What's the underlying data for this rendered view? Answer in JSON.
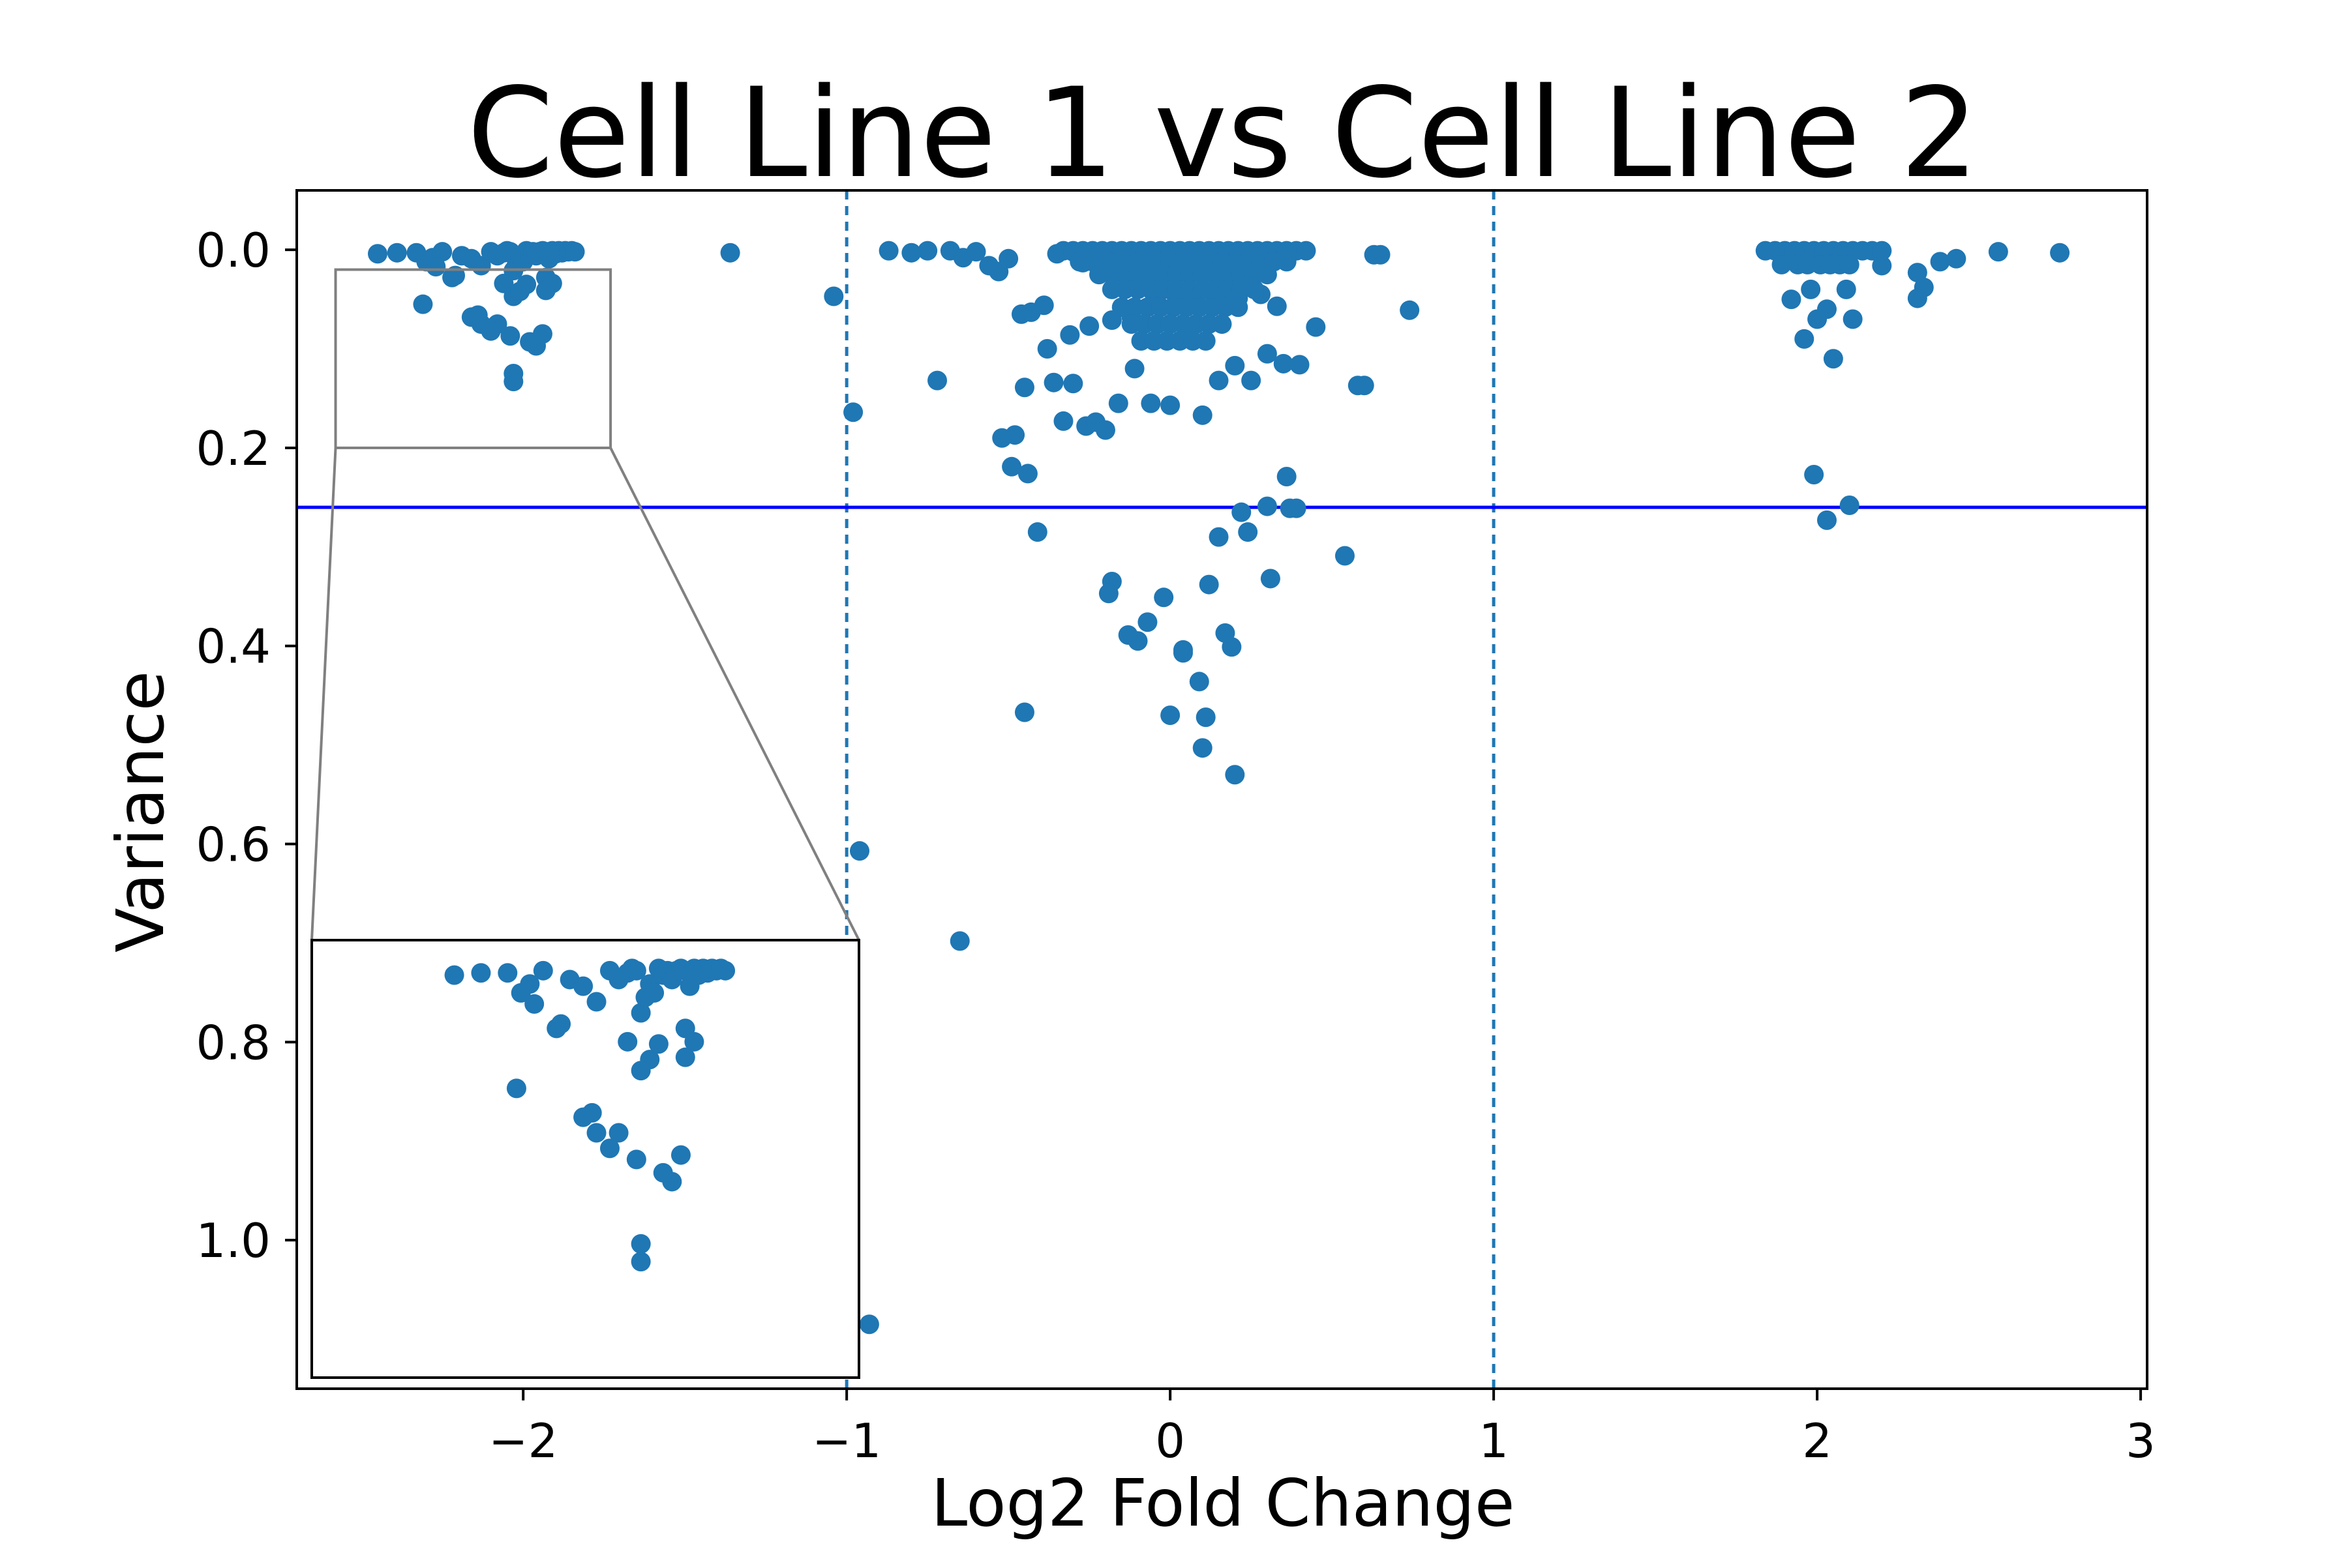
{
  "chart_data": {
    "type": "scatter",
    "title": "Cell Line 1 vs Cell Line 2",
    "xlabel": "Log2 Fold Change",
    "ylabel": "Variance",
    "xlim": [
      -2.7,
      3.02
    ],
    "ylim": [
      1.15,
      -0.06
    ],
    "y_axis_inverted": true,
    "x_ticks": [
      "−2",
      "−1",
      "0",
      "1",
      "2",
      "3"
    ],
    "x_tick_values": [
      -2,
      -1,
      0,
      1,
      2,
      3
    ],
    "y_ticks": [
      "0.0",
      "0.2",
      "0.4",
      "0.6",
      "0.8",
      "1.0"
    ],
    "y_tick_values": [
      0.0,
      0.2,
      0.4,
      0.6,
      0.8,
      1.0
    ],
    "grid": false,
    "marker_color": "#1f77b4",
    "reference_lines": [
      {
        "orientation": "vertical",
        "x": -1,
        "style": "dashed",
        "color": "#1f77b4"
      },
      {
        "orientation": "vertical",
        "x": 1,
        "style": "dashed",
        "color": "#1f77b4"
      },
      {
        "orientation": "horizontal",
        "y": 0.26,
        "style": "solid",
        "color": "#0000ff"
      }
    ],
    "inset": {
      "zoom_region": {
        "x": [
          -2.58,
          -1.73
        ],
        "y": [
          0.02,
          0.2
        ]
      },
      "border_color": "#000000",
      "connector_color": "#808080",
      "placement": "lower-left"
    },
    "series": [
      {
        "x": [
          -2.45,
          -2.39,
          -2.33,
          -2.3,
          -2.28,
          -2.25,
          -2.22,
          -2.19,
          -2.16,
          -2.13,
          -2.1,
          -2.08,
          -2.06,
          -2.05,
          -2.04,
          -2.03,
          -2.02,
          -2.01,
          -2.0,
          -1.99,
          -1.98,
          -1.97,
          -1.96,
          -1.95,
          -1.94,
          -1.93,
          -1.92,
          -1.91,
          -1.9,
          -1.89,
          -1.88,
          -1.87,
          -1.86,
          -1.85,
          -1.84,
          -2.31,
          -2.27,
          -2.21,
          -2.16,
          -2.13,
          -2.08,
          -2.06,
          -2.03,
          -2.01,
          -1.99,
          -1.96,
          -1.93,
          -1.91,
          -2.14,
          -2.1,
          -2.04,
          -1.98,
          -2.03,
          -2.03,
          -1.94,
          -1.93
        ],
        "y": [
          0.004,
          0.003,
          0.003,
          0.012,
          0.008,
          0.002,
          0.028,
          0.006,
          0.009,
          0.016,
          0.002,
          0.006,
          0.003,
          0.001,
          0.002,
          0.021,
          0.014,
          0.008,
          0.012,
          0.001,
          0.004,
          0.002,
          0.006,
          0.002,
          0.001,
          0.002,
          0.009,
          0.001,
          0.004,
          0.001,
          0.003,
          0.001,
          0.002,
          0.001,
          0.002,
          0.055,
          0.017,
          0.026,
          0.068,
          0.075,
          0.075,
          0.034,
          0.047,
          0.042,
          0.035,
          0.097,
          0.028,
          0.034,
          0.066,
          0.082,
          0.087,
          0.093,
          0.125,
          0.133,
          0.085,
          0.041
        ]
      },
      {
        "x": [
          -1.36,
          -1.04,
          -0.98,
          -0.96,
          -0.93,
          -0.87,
          -0.8,
          -0.75,
          -0.68,
          -0.64,
          -0.6,
          -0.56,
          -0.53,
          -0.5,
          -0.46,
          -0.43,
          -0.39,
          -0.35,
          -0.3,
          -0.27,
          -0.23,
          -0.72,
          -0.48,
          -0.44,
          -0.41,
          -0.3,
          -0.52,
          -0.49,
          -0.45,
          -0.36,
          -0.33,
          -0.26,
          -0.23,
          -0.2,
          -0.16,
          -0.11,
          -0.06,
          0.0,
          0.05,
          0.1,
          0.15,
          0.2,
          0.25,
          0.3,
          0.35,
          0.4,
          0.45,
          0.54,
          0.58,
          0.63,
          0.65,
          0.74,
          -0.38,
          -0.31,
          -0.25,
          -0.18,
          -0.12,
          -0.05,
          0.02,
          0.08,
          0.14,
          0.21,
          0.28,
          0.33,
          0.6,
          -0.18,
          -0.1,
          0.12,
          0.19,
          -0.19,
          -0.13,
          -0.07,
          -0.02,
          0.04,
          0.09,
          0.17,
          0.24,
          0.37,
          0.15,
          0.22,
          0.31,
          0.36,
          0.39,
          0.0,
          0.1,
          0.2,
          0.3,
          -0.45,
          0.11,
          0.04,
          -0.65
        ],
        "y": [
          0.003,
          0.047,
          0.164,
          0.607,
          1.085,
          0.001,
          0.003,
          0.001,
          0.001,
          0.008,
          0.002,
          0.016,
          0.022,
          0.009,
          0.065,
          0.063,
          0.056,
          0.004,
          0.002,
          0.013,
          0.006,
          0.132,
          0.187,
          0.226,
          0.285,
          0.135,
          0.19,
          0.219,
          0.139,
          0.134,
          0.173,
          0.178,
          0.174,
          0.182,
          0.155,
          0.12,
          0.155,
          0.157,
          0.08,
          0.167,
          0.132,
          0.117,
          0.132,
          0.105,
          0.115,
          0.116,
          0.078,
          0.309,
          0.137,
          0.005,
          0.005,
          0.061,
          0.1,
          0.086,
          0.077,
          0.071,
          0.068,
          0.053,
          0.05,
          0.05,
          0.05,
          0.049,
          0.045,
          0.057,
          0.137,
          0.335,
          0.395,
          0.338,
          0.401,
          0.347,
          0.389,
          0.376,
          0.351,
          0.407,
          0.436,
          0.387,
          0.285,
          0.261,
          0.29,
          0.265,
          0.332,
          0.229,
          0.261,
          0.47,
          0.503,
          0.53,
          0.259,
          0.467,
          0.472,
          0.404,
          0.698
        ]
      },
      {
        "x": [
          -0.33,
          -0.3,
          -0.27,
          -0.24,
          -0.21,
          -0.18,
          -0.15,
          -0.12,
          -0.09,
          -0.06,
          -0.03,
          0.0,
          0.03,
          0.06,
          0.09,
          0.12,
          0.15,
          0.18,
          0.21,
          0.24,
          0.27,
          0.3,
          0.33,
          0.36,
          0.39,
          0.42,
          -0.28,
          -0.24,
          -0.2,
          -0.16,
          -0.12,
          -0.08,
          -0.04,
          0.0,
          0.04,
          0.08,
          0.12,
          0.16,
          0.2,
          0.24,
          0.28,
          0.32,
          0.36,
          -0.22,
          -0.18,
          -0.14,
          -0.1,
          -0.06,
          -0.02,
          0.02,
          0.06,
          0.1,
          0.14,
          0.18,
          0.22,
          0.26,
          0.3,
          -0.18,
          -0.14,
          -0.1,
          -0.06,
          -0.02,
          0.02,
          0.06,
          0.1,
          0.14,
          0.18,
          0.22,
          0.26,
          -0.15,
          -0.11,
          -0.07,
          -0.03,
          0.01,
          0.05,
          0.09,
          0.13,
          0.17,
          0.21,
          -0.12,
          -0.08,
          -0.04,
          0.0,
          0.04,
          0.08,
          0.12,
          0.16,
          -0.09,
          -0.05,
          -0.01,
          0.03,
          0.07,
          0.11
        ],
        "y": [
          0.001,
          0.001,
          0.001,
          0.001,
          0.001,
          0.001,
          0.001,
          0.001,
          0.001,
          0.001,
          0.001,
          0.001,
          0.001,
          0.001,
          0.001,
          0.001,
          0.001,
          0.001,
          0.001,
          0.001,
          0.001,
          0.001,
          0.001,
          0.001,
          0.001,
          0.001,
          0.012,
          0.012,
          0.012,
          0.012,
          0.012,
          0.012,
          0.012,
          0.012,
          0.012,
          0.012,
          0.012,
          0.012,
          0.012,
          0.012,
          0.012,
          0.012,
          0.012,
          0.025,
          0.025,
          0.025,
          0.025,
          0.025,
          0.025,
          0.025,
          0.025,
          0.025,
          0.025,
          0.025,
          0.025,
          0.025,
          0.025,
          0.04,
          0.04,
          0.04,
          0.04,
          0.04,
          0.04,
          0.04,
          0.04,
          0.04,
          0.04,
          0.04,
          0.04,
          0.058,
          0.058,
          0.058,
          0.058,
          0.058,
          0.058,
          0.058,
          0.058,
          0.058,
          0.058,
          0.075,
          0.075,
          0.075,
          0.075,
          0.075,
          0.075,
          0.075,
          0.075,
          0.092,
          0.092,
          0.092,
          0.092,
          0.092,
          0.092
        ]
      },
      {
        "x": [
          1.84,
          1.87,
          1.9,
          1.93,
          1.96,
          1.99,
          2.02,
          2.05,
          2.08,
          2.11,
          2.14,
          2.17,
          2.2,
          1.89,
          1.94,
          1.97,
          2.01,
          2.04,
          2.07,
          2.1,
          1.92,
          1.98,
          2.03,
          2.09,
          1.96,
          2.0,
          2.05,
          2.11,
          2.2,
          2.31,
          2.33,
          2.38,
          2.43,
          2.56,
          2.75,
          2.31,
          1.99,
          2.03,
          2.1
        ],
        "y": [
          0.001,
          0.001,
          0.001,
          0.001,
          0.001,
          0.001,
          0.001,
          0.001,
          0.001,
          0.001,
          0.001,
          0.001,
          0.001,
          0.015,
          0.015,
          0.015,
          0.015,
          0.015,
          0.015,
          0.015,
          0.05,
          0.04,
          0.06,
          0.04,
          0.09,
          0.07,
          0.11,
          0.07,
          0.016,
          0.023,
          0.038,
          0.012,
          0.009,
          0.002,
          0.003,
          0.049,
          0.227,
          0.273,
          0.258
        ]
      }
    ]
  }
}
